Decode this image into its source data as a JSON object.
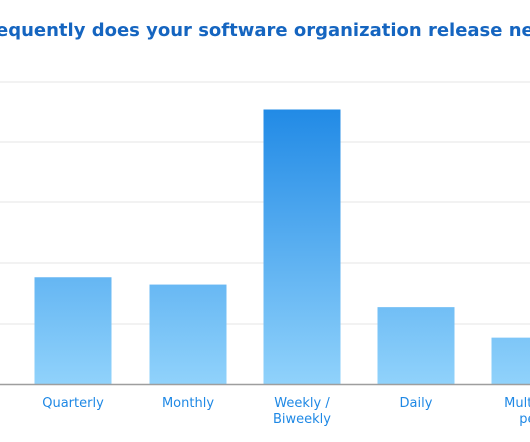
{
  "colors": {
    "title": "#1565c0",
    "tick_label": "#1e88e5",
    "grid": "#e6e6e6",
    "axis": "#9e9e9e",
    "bar_top_strong": "#1e88e5",
    "bar_bottom_light": "#90d2fb"
  },
  "chart_data": {
    "type": "bar",
    "title": "equently does your software organization release new features to",
    "xlabel": "",
    "ylabel": "",
    "grid": true,
    "ylim": [
      0,
      50
    ],
    "categories": [
      [
        "Quarterly"
      ],
      [
        "Monthly"
      ],
      [
        "Weekly /",
        "Biweekly"
      ],
      [
        "Daily"
      ],
      [
        "Multiple",
        "per"
      ]
    ],
    "values": [
      17.5,
      16.3,
      45,
      12.6,
      7.6
    ]
  }
}
